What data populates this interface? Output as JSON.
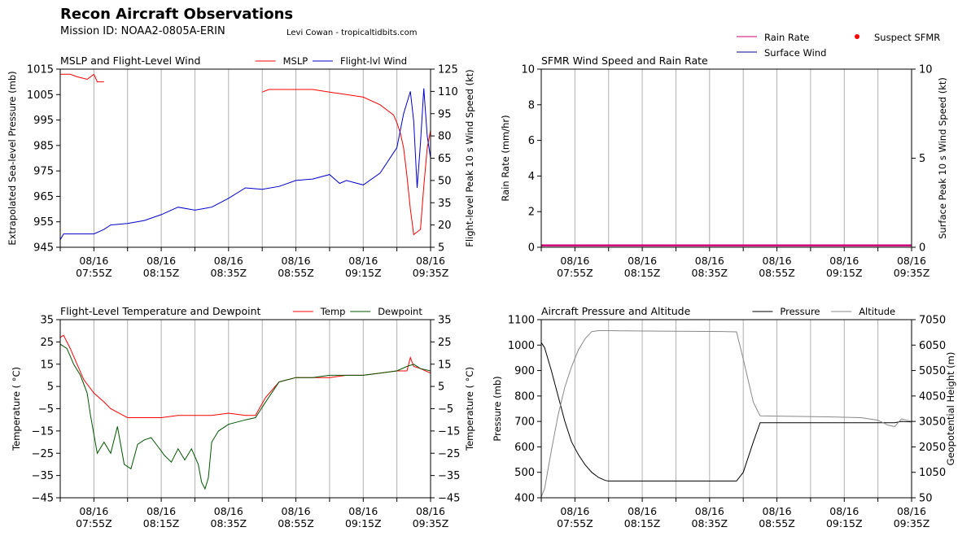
{
  "header": {
    "title": "Recon Aircraft Observations",
    "mission": "Mission ID: NOAA2-0805A-ERIN",
    "credit": "Levi Cowan - tropicaltidbits.com"
  },
  "time_axis": {
    "tick_times": [
      "07:45",
      "07:55",
      "08:05",
      "08:15",
      "08:25",
      "08:35",
      "08:45",
      "08:55",
      "09:05",
      "09:15",
      "09:25",
      "09:35"
    ],
    "label_times": [
      "07:55",
      "08:15",
      "08:35",
      "08:55",
      "09:15",
      "09:35"
    ],
    "label_date": "08/16",
    "label_suffix": "Z",
    "range": [
      "07:45",
      "09:35"
    ]
  },
  "chart_data": [
    {
      "id": "mslp_wind",
      "type": "line",
      "title": "MSLP and Flight-Level Wind",
      "ylabel_left": "Extrapolated Sea-level Pressure (mb)",
      "ylabel_right": "Flight-level Peak 10 s Wind Speed (kt)",
      "ylim_left": [
        945,
        1015
      ],
      "yticks_left": [
        945,
        955,
        965,
        975,
        985,
        995,
        1005,
        1015
      ],
      "ylim_right": [
        5,
        125
      ],
      "yticks_right": [
        5,
        20,
        35,
        50,
        65,
        80,
        95,
        110,
        125
      ],
      "legend": "top-right",
      "grid": "vertical",
      "series": [
        {
          "name": "MSLP",
          "color": "#ff0000",
          "axis": "left",
          "x": [
            "07:45",
            "07:48",
            "07:50",
            "07:53",
            "07:55"
          ],
          "y": [
            1013,
            1013,
            1012,
            1011,
            1013
          ]
        },
        {
          "name": "MSLP",
          "color": "#ff0000",
          "axis": "left",
          "x": [
            "07:55",
            "07:56",
            "07:58"
          ],
          "y": [
            1013,
            1010,
            1010
          ]
        },
        {
          "name": "MSLP",
          "color": "#ff0000",
          "axis": "left",
          "x": [
            "08:45",
            "08:47",
            "08:50",
            "08:55",
            "09:00",
            "09:05",
            "09:10",
            "09:15",
            "09:20",
            "09:22",
            "09:24",
            "09:25",
            "09:26",
            "09:27",
            "09:28",
            "09:29",
            "09:30",
            "09:32",
            "09:33",
            "09:34",
            "09:35"
          ],
          "y": [
            1006,
            1007,
            1007,
            1007,
            1007,
            1006,
            1005,
            1004,
            1001,
            999,
            997,
            994,
            990,
            984,
            973,
            960,
            950,
            952,
            969,
            984,
            991
          ]
        },
        {
          "name": "Flight-lvl Wind",
          "color": "#0000cc",
          "axis": "right",
          "x": [
            "07:45",
            "07:46",
            "07:50",
            "07:55",
            "07:58",
            "08:00",
            "08:05",
            "08:10",
            "08:15",
            "08:20",
            "08:25",
            "08:30",
            "08:35",
            "08:40",
            "08:45",
            "08:50",
            "08:55",
            "09:00",
            "09:05",
            "09:08",
            "09:10",
            "09:15",
            "09:20",
            "09:25",
            "09:27",
            "09:29",
            "09:30",
            "09:31",
            "09:32",
            "09:33",
            "09:34",
            "09:35"
          ],
          "y": [
            10,
            14,
            14,
            14,
            17,
            20,
            21,
            23,
            27,
            32,
            30,
            32,
            38,
            45,
            44,
            46,
            50,
            51,
            54,
            48,
            50,
            47,
            55,
            72,
            95,
            110,
            90,
            45,
            75,
            112,
            80,
            65
          ]
        }
      ]
    },
    {
      "id": "sfmr",
      "type": "line",
      "title": "SFMR Wind Speed and Rain Rate",
      "ylabel_left": "Rain Rate (mm/hr)",
      "ylabel_right": "Surface Peak 10 s Wind Speed (kt)",
      "ylim_left": [
        0,
        10
      ],
      "yticks_left": [
        0,
        2,
        4,
        6,
        8,
        10
      ],
      "ylim_right": [
        0,
        10
      ],
      "yticks_right": [
        0,
        5,
        10
      ],
      "legend": "above-right",
      "grid": "vertical",
      "series": [
        {
          "name": "Rain Rate",
          "color": "#cc0077",
          "axis": "left",
          "x": [
            "07:45",
            "09:35"
          ],
          "y": [
            0.1,
            0.1
          ]
        },
        {
          "name": "Surface Wind",
          "color": "#00008b",
          "axis": "right",
          "x": [],
          "y": []
        },
        {
          "name": "Suspect SFMR",
          "color": "#ff0000",
          "axis": "right",
          "marker": "dot",
          "x": [],
          "y": []
        }
      ]
    },
    {
      "id": "temp_dew",
      "type": "line",
      "title": "Flight-Level Temperature and Dewpoint",
      "ylabel_left": "Temperature ( °C)",
      "ylabel_right": "Temperature ( °C)",
      "ylim_left": [
        -45,
        35
      ],
      "yticks_left": [
        "35",
        "25",
        "15",
        "5",
        "−5",
        "−15",
        "−25",
        "−35",
        "−45"
      ],
      "ylim_right": [
        -45,
        35
      ],
      "legend": "top-right",
      "grid": "vertical",
      "series": [
        {
          "name": "Temp",
          "color": "#ff0000",
          "axis": "left",
          "x": [
            "07:45",
            "07:46",
            "07:48",
            "07:50",
            "07:52",
            "07:55",
            "07:58",
            "08:00",
            "08:05",
            "08:10",
            "08:15",
            "08:20",
            "08:25",
            "08:30",
            "08:35",
            "08:40",
            "08:43",
            "08:46",
            "08:50",
            "08:55",
            "09:00",
            "09:05",
            "09:10",
            "09:15",
            "09:20",
            "09:25",
            "09:28",
            "09:29",
            "09:30",
            "09:32",
            "09:35"
          ],
          "y": [
            27,
            28,
            22,
            15,
            8,
            2,
            -2,
            -5,
            -9,
            -9,
            -9,
            -8,
            -8,
            -8,
            -7,
            -8,
            -8,
            0,
            7,
            9,
            9,
            9,
            10,
            10,
            11,
            12,
            12,
            18,
            14,
            13,
            11
          ]
        },
        {
          "name": "Dewpoint",
          "color": "#005500",
          "axis": "left",
          "x": [
            "07:45",
            "07:47",
            "07:49",
            "07:51",
            "07:53",
            "07:54",
            "07:56",
            "07:58",
            "08:00",
            "08:02",
            "08:04",
            "08:06",
            "08:08",
            "08:10",
            "08:12",
            "08:14",
            "08:16",
            "08:18",
            "08:20",
            "08:22",
            "08:24",
            "08:26",
            "08:27",
            "08:28",
            "08:29",
            "08:30",
            "08:32",
            "08:35",
            "08:40",
            "08:43",
            "08:46",
            "08:50",
            "08:55",
            "09:00",
            "09:05",
            "09:10",
            "09:15",
            "09:20",
            "09:25",
            "09:28",
            "09:30",
            "09:32",
            "09:35"
          ],
          "y": [
            24,
            22,
            15,
            10,
            2,
            -8,
            -25,
            -20,
            -25,
            -13,
            -30,
            -32,
            -21,
            -19,
            -18,
            -22,
            -26,
            -29,
            -23,
            -28,
            -23,
            -30,
            -38,
            -41,
            -36,
            -20,
            -15,
            -12,
            -10,
            -9,
            -2,
            7,
            9,
            9,
            10,
            10,
            10,
            11,
            12,
            14,
            15,
            13,
            12
          ]
        }
      ]
    },
    {
      "id": "press_alt",
      "type": "line",
      "title": "Aircraft Pressure and Altitude",
      "ylabel_left": "Pressure (mb)",
      "ylabel_right": "Geopotential Height (m)",
      "ylim_left": [
        400,
        1100
      ],
      "yticks_left": [
        400,
        500,
        600,
        700,
        800,
        900,
        1000,
        1100
      ],
      "ylim_right": [
        50,
        7050
      ],
      "yticks_right": [
        50,
        1050,
        2050,
        3050,
        4050,
        5050,
        6050,
        7050
      ],
      "legend": "top-right",
      "grid": "vertical",
      "series": [
        {
          "name": "Pressure",
          "color": "#000000",
          "axis": "left",
          "x": [
            "07:45",
            "07:46",
            "07:48",
            "07:50",
            "07:52",
            "07:54",
            "07:56",
            "07:58",
            "08:00",
            "08:02",
            "08:04",
            "08:05",
            "08:10",
            "08:20",
            "08:30",
            "08:40",
            "08:43",
            "08:45",
            "08:48",
            "08:50",
            "08:55",
            "09:00",
            "09:10",
            "09:20",
            "09:25",
            "09:30",
            "09:32",
            "09:35"
          ],
          "y": [
            1010,
            990,
            900,
            800,
            700,
            620,
            570,
            530,
            500,
            480,
            468,
            466,
            466,
            466,
            466,
            466,
            466,
            500,
            620,
            695,
            695,
            695,
            695,
            695,
            695,
            695,
            700,
            698
          ]
        },
        {
          "name": "Altitude",
          "color": "#888888",
          "axis": "right",
          "x": [
            "07:45",
            "07:46",
            "07:48",
            "07:50",
            "07:52",
            "07:54",
            "07:56",
            "07:58",
            "08:00",
            "08:02",
            "08:04",
            "08:05",
            "08:10",
            "08:20",
            "08:30",
            "08:40",
            "08:43",
            "08:45",
            "08:48",
            "08:50",
            "08:55",
            "09:00",
            "09:10",
            "09:20",
            "09:25",
            "09:28",
            "09:30",
            "09:32",
            "09:35"
          ],
          "y": [
            80,
            400,
            1900,
            3300,
            4400,
            5200,
            5850,
            6300,
            6580,
            6620,
            6620,
            6620,
            6610,
            6600,
            6590,
            6580,
            6570,
            5500,
            3800,
            3270,
            3260,
            3250,
            3230,
            3200,
            3100,
            2900,
            2850,
            3150,
            3050
          ]
        }
      ]
    }
  ]
}
